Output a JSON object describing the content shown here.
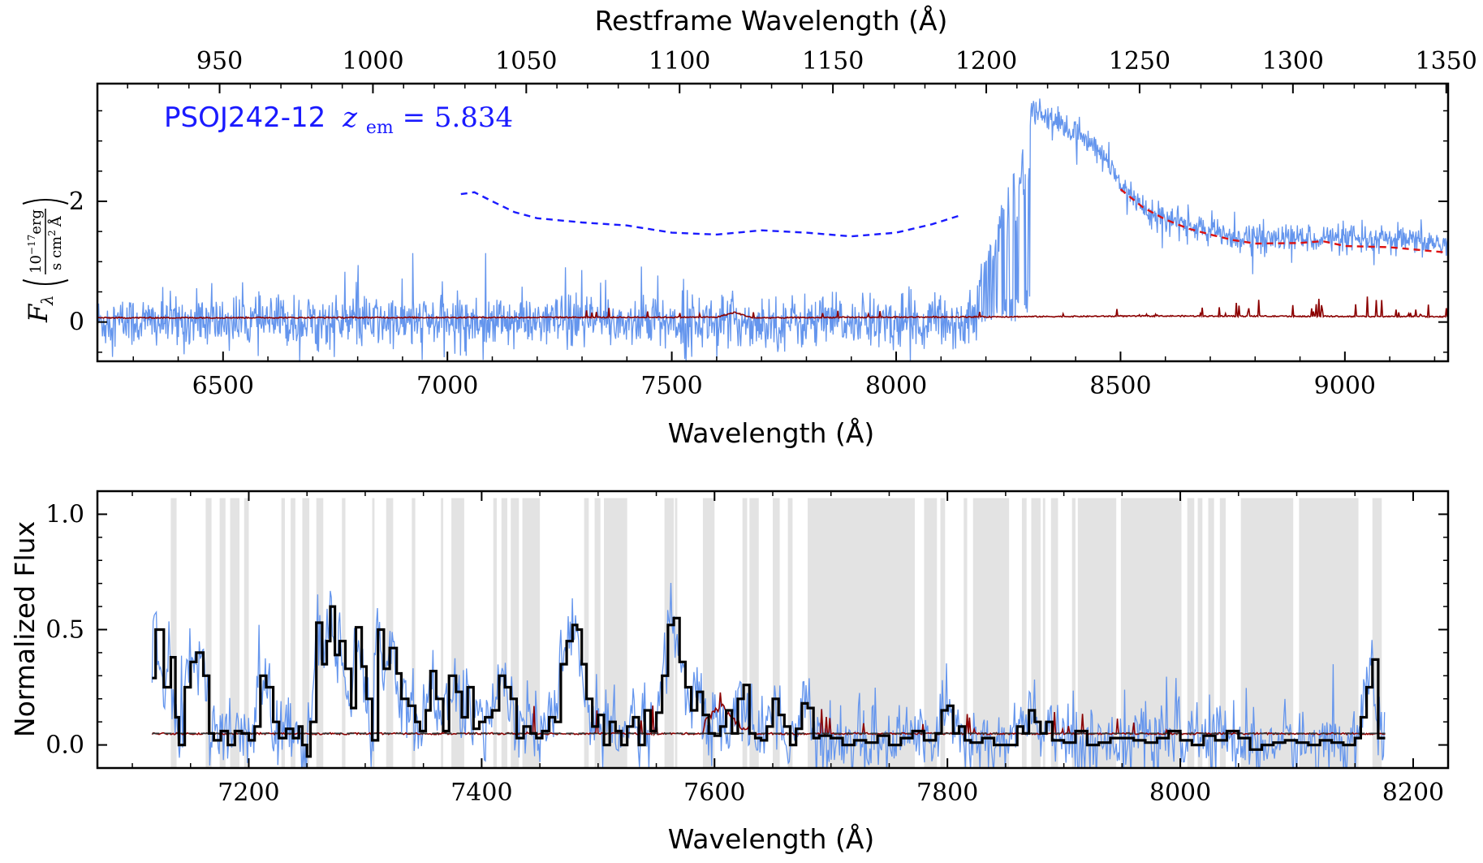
{
  "chart_data": [
    {
      "type": "line",
      "xlabel": "Wavelength (Å)",
      "top_xlabel": "Restframe Wavelength (Å)",
      "ylabel_symbol": "F",
      "ylabel_sub": "λ",
      "ylabel_num": "10",
      "ylabel_num_exp": "−17",
      "ylabel_num_unit": "erg",
      "ylabel_den": "s cm",
      "ylabel_den_exp": "2",
      "ylabel_den_unit": "Å",
      "xlim": [
        6220,
        9230
      ],
      "ylim": [
        -0.65,
        3.95
      ],
      "xticks": [
        6500,
        7000,
        7500,
        8000,
        8500,
        9000
      ],
      "yticks": [
        0,
        2
      ],
      "top_xticks": [
        950,
        1000,
        1050,
        1100,
        1150,
        1200,
        1250,
        1300,
        1350
      ],
      "redshift": 5.834,
      "annotation": {
        "name": "PSOJ242-12",
        "z_symbol": "z",
        "z_sub": "em",
        "equals": " = 5.834",
        "color": "#1a1aff"
      },
      "series": [
        {
          "role": "flux",
          "color": "#6495ed",
          "envelope": [
            [
              6220,
              0.6
            ],
            [
              7000,
              1.0
            ],
            [
              7300,
              1.1
            ],
            [
              7700,
              0.8
            ],
            [
              8150,
              0.5
            ],
            [
              8200,
              1.5
            ],
            [
              8300,
              3.6
            ],
            [
              8400,
              3.2
            ],
            [
              8500,
              2.4
            ],
            [
              8600,
              1.7
            ],
            [
              8750,
              1.4
            ],
            [
              9230,
              1.35
            ]
          ]
        },
        {
          "role": "error",
          "color": "#8b0000",
          "points": [
            [
              6220,
              0.06
            ],
            [
              7600,
              0.07
            ],
            [
              7640,
              0.15
            ],
            [
              7680,
              0.06
            ],
            [
              8300,
              0.08
            ],
            [
              8600,
              0.09
            ],
            [
              9230,
              0.08
            ]
          ]
        },
        {
          "role": "blue-continuum-model",
          "color": "#1a1aff",
          "style": "dashed",
          "points": [
            [
              7030,
              2.12
            ],
            [
              7060,
              2.15
            ],
            [
              7100,
              2.0
            ],
            [
              7150,
              1.82
            ],
            [
              7200,
              1.72
            ],
            [
              7300,
              1.65
            ],
            [
              7400,
              1.6
            ],
            [
              7500,
              1.48
            ],
            [
              7600,
              1.45
            ],
            [
              7700,
              1.52
            ],
            [
              7800,
              1.48
            ],
            [
              7900,
              1.42
            ],
            [
              8000,
              1.48
            ],
            [
              8080,
              1.62
            ],
            [
              8140,
              1.76
            ]
          ]
        },
        {
          "role": "red-continuum-model",
          "color": "#dd1111",
          "style": "dashed",
          "points": [
            [
              8500,
              2.2
            ],
            [
              8550,
              1.9
            ],
            [
              8600,
              1.7
            ],
            [
              8650,
              1.55
            ],
            [
              8700,
              1.45
            ],
            [
              8750,
              1.36
            ],
            [
              8800,
              1.3
            ],
            [
              8900,
              1.31
            ],
            [
              8950,
              1.34
            ],
            [
              9000,
              1.26
            ],
            [
              9100,
              1.24
            ],
            [
              9230,
              1.15
            ]
          ]
        }
      ]
    },
    {
      "type": "line",
      "xlabel": "Wavelength (Å)",
      "ylabel": "Normalized Flux",
      "xlim": [
        7070,
        8230
      ],
      "ylim": [
        -0.1,
        1.1
      ],
      "xticks": [
        7200,
        7400,
        7600,
        7800,
        8000,
        8200
      ],
      "yticks": [
        "0.0",
        "0.5",
        "1.0"
      ],
      "shaded_regions": [
        [
          7133,
          7138
        ],
        [
          7163,
          7168
        ],
        [
          7175,
          7180
        ],
        [
          7184,
          7192
        ],
        [
          7196,
          7200
        ],
        [
          7228,
          7231
        ],
        [
          7236,
          7240
        ],
        [
          7246,
          7252
        ],
        [
          7258,
          7264
        ],
        [
          7280,
          7283
        ],
        [
          7306,
          7308
        ],
        [
          7318,
          7324
        ],
        [
          7340,
          7343
        ],
        [
          7365,
          7367
        ],
        [
          7374,
          7385
        ],
        [
          7410,
          7413
        ],
        [
          7417,
          7422
        ],
        [
          7425,
          7432
        ],
        [
          7435,
          7444
        ],
        [
          7444,
          7450
        ],
        [
          7488,
          7492
        ],
        [
          7497,
          7502
        ],
        [
          7505,
          7525
        ],
        [
          7557,
          7565
        ],
        [
          7566,
          7568
        ],
        [
          7590,
          7600
        ],
        [
          7624,
          7628
        ],
        [
          7630,
          7638
        ],
        [
          7650,
          7656
        ],
        [
          7663,
          7667
        ],
        [
          7680,
          7688
        ],
        [
          7688,
          7772
        ],
        [
          7780,
          7791
        ],
        [
          7794,
          7798
        ],
        [
          7814,
          7817
        ],
        [
          7822,
          7853
        ],
        [
          7864,
          7868
        ],
        [
          7872,
          7880
        ],
        [
          7882,
          7884
        ],
        [
          7889,
          7895
        ],
        [
          7907,
          7910
        ],
        [
          7912,
          7945
        ],
        [
          7949,
          8001
        ],
        [
          8006,
          8012
        ],
        [
          8015,
          8019
        ],
        [
          8024,
          8029
        ],
        [
          8034,
          8039
        ],
        [
          8052,
          8097
        ],
        [
          8102,
          8153
        ],
        [
          8165,
          8173
        ]
      ],
      "series": [
        {
          "role": "flux",
          "color": "#6495ed"
        },
        {
          "role": "binned-flux",
          "color": "#000000",
          "points": [
            [
              7117,
              0.29
            ],
            [
              7120,
              0.5
            ],
            [
              7127,
              0.25
            ],
            [
              7133,
              0.38
            ],
            [
              7137,
              0.12
            ],
            [
              7140,
              0.0
            ],
            [
              7145,
              0.25
            ],
            [
              7150,
              0.36
            ],
            [
              7155,
              0.4
            ],
            [
              7161,
              0.3
            ],
            [
              7166,
              0.05
            ],
            [
              7170,
              0.02
            ],
            [
              7176,
              0.06
            ],
            [
              7182,
              0.0
            ],
            [
              7188,
              0.06
            ],
            [
              7194,
              0.05
            ],
            [
              7200,
              0.02
            ],
            [
              7205,
              0.08
            ],
            [
              7210,
              0.3
            ],
            [
              7215,
              0.25
            ],
            [
              7221,
              0.1
            ],
            [
              7226,
              0.03
            ],
            [
              7232,
              0.07
            ],
            [
              7238,
              0.03
            ],
            [
              7243,
              0.08
            ],
            [
              7246,
              0.0
            ],
            [
              7250,
              -0.05
            ],
            [
              7253,
              0.1
            ],
            [
              7258,
              0.53
            ],
            [
              7263,
              0.35
            ],
            [
              7267,
              0.45
            ],
            [
              7270,
              0.6
            ],
            [
              7274,
              0.39
            ],
            [
              7278,
              0.45
            ],
            [
              7283,
              0.33
            ],
            [
              7288,
              0.16
            ],
            [
              7292,
              0.51
            ],
            [
              7297,
              0.34
            ],
            [
              7301,
              0.2
            ],
            [
              7306,
              0.02
            ],
            [
              7311,
              0.5
            ],
            [
              7316,
              0.33
            ],
            [
              7321,
              0.42
            ],
            [
              7327,
              0.31
            ],
            [
              7331,
              0.2
            ],
            [
              7337,
              0.17
            ],
            [
              7343,
              0.1
            ],
            [
              7347,
              0.06
            ],
            [
              7352,
              0.15
            ],
            [
              7356,
              0.32
            ],
            [
              7361,
              0.2
            ],
            [
              7367,
              0.06
            ],
            [
              7372,
              0.3
            ],
            [
              7378,
              0.23
            ],
            [
              7383,
              0.12
            ],
            [
              7388,
              0.25
            ],
            [
              7393,
              0.07
            ],
            [
              7398,
              0.1
            ],
            [
              7403,
              0.12
            ],
            [
              7409,
              0.15
            ],
            [
              7415,
              0.3
            ],
            [
              7420,
              0.25
            ],
            [
              7425,
              0.2
            ],
            [
              7430,
              0.03
            ],
            [
              7436,
              0.08
            ],
            [
              7442,
              0.05
            ],
            [
              7447,
              0.03
            ],
            [
              7452,
              0.06
            ],
            [
              7458,
              0.12
            ],
            [
              7463,
              0.1
            ],
            [
              7468,
              0.35
            ],
            [
              7473,
              0.45
            ],
            [
              7478,
              0.52
            ],
            [
              7482,
              0.5
            ],
            [
              7486,
              0.35
            ],
            [
              7490,
              0.2
            ],
            [
              7495,
              0.08
            ],
            [
              7500,
              0.13
            ],
            [
              7505,
              0.0
            ],
            [
              7510,
              0.1
            ],
            [
              7515,
              0.06
            ],
            [
              7520,
              0.0
            ],
            [
              7525,
              0.08
            ],
            [
              7530,
              0.12
            ],
            [
              7535,
              0.0
            ],
            [
              7540,
              0.15
            ],
            [
              7545,
              0.06
            ],
            [
              7550,
              0.14
            ],
            [
              7555,
              0.3
            ],
            [
              7560,
              0.52
            ],
            [
              7565,
              0.55
            ],
            [
              7570,
              0.36
            ],
            [
              7575,
              0.25
            ],
            [
              7580,
              0.15
            ],
            [
              7585,
              0.23
            ],
            [
              7590,
              0.13
            ],
            [
              7595,
              0.05
            ],
            [
              7600,
              0.04
            ],
            [
              7605,
              0.08
            ],
            [
              7610,
              0.15
            ],
            [
              7615,
              0.05
            ],
            [
              7620,
              0.2
            ],
            [
              7625,
              0.26
            ],
            [
              7630,
              0.05
            ],
            [
              7635,
              0.03
            ],
            [
              7640,
              0.02
            ],
            [
              7645,
              0.08
            ],
            [
              7650,
              0.2
            ],
            [
              7655,
              0.13
            ],
            [
              7660,
              0.08
            ],
            [
              7665,
              0.0
            ],
            [
              7670,
              0.07
            ],
            [
              7675,
              0.18
            ],
            [
              7680,
              0.16
            ],
            [
              7685,
              0.03
            ],
            [
              7690,
              0.04
            ],
            [
              7700,
              0.03
            ],
            [
              7710,
              0.0
            ],
            [
              7720,
              0.02
            ],
            [
              7730,
              0.01
            ],
            [
              7740,
              0.04
            ],
            [
              7750,
              0.0
            ],
            [
              7760,
              0.03
            ],
            [
              7770,
              0.06
            ],
            [
              7780,
              0.02
            ],
            [
              7790,
              0.05
            ],
            [
              7795,
              0.15
            ],
            [
              7800,
              0.17
            ],
            [
              7805,
              0.05
            ],
            [
              7810,
              0.08
            ],
            [
              7815,
              0.02
            ],
            [
              7820,
              0.01
            ],
            [
              7830,
              0.03
            ],
            [
              7840,
              0.0
            ],
            [
              7850,
              0.0
            ],
            [
              7860,
              0.08
            ],
            [
              7865,
              0.05
            ],
            [
              7870,
              0.15
            ],
            [
              7875,
              0.1
            ],
            [
              7880,
              0.05
            ],
            [
              7885,
              0.1
            ],
            [
              7890,
              0.02
            ],
            [
              7900,
              0.01
            ],
            [
              7910,
              0.06
            ],
            [
              7920,
              0.0
            ],
            [
              7930,
              0.01
            ],
            [
              7940,
              0.03
            ],
            [
              7950,
              0.03
            ],
            [
              7960,
              0.02
            ],
            [
              7970,
              0.01
            ],
            [
              7980,
              0.03
            ],
            [
              7990,
              0.06
            ],
            [
              8000,
              0.02
            ],
            [
              8010,
              0.0
            ],
            [
              8020,
              0.04
            ],
            [
              8030,
              0.02
            ],
            [
              8040,
              0.06
            ],
            [
              8050,
              0.03
            ],
            [
              8060,
              -0.02
            ],
            [
              8070,
              0.0
            ],
            [
              8080,
              0.01
            ],
            [
              8090,
              0.02
            ],
            [
              8100,
              0.01
            ],
            [
              8110,
              0.0
            ],
            [
              8120,
              0.02
            ],
            [
              8130,
              0.01
            ],
            [
              8140,
              0.0
            ],
            [
              8150,
              0.03
            ],
            [
              8155,
              0.12
            ],
            [
              8160,
              0.25
            ],
            [
              8165,
              0.37
            ],
            [
              8170,
              0.03
            ],
            [
              8176,
              0.03
            ]
          ]
        },
        {
          "role": "error",
          "color": "#8b0000"
        },
        {
          "role": "continuum-level",
          "color": "#333333",
          "style": "dashed",
          "points": [
            [
              7117,
              0.05
            ],
            [
              8176,
              0.05
            ]
          ]
        }
      ]
    }
  ]
}
